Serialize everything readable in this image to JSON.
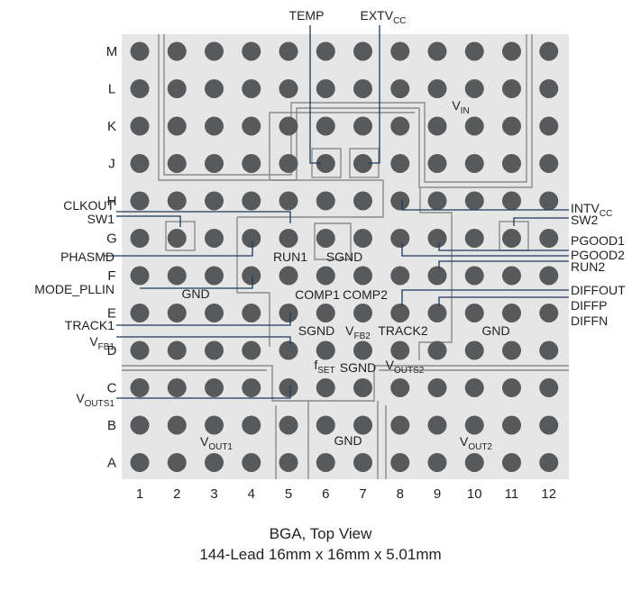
{
  "package": {
    "rows": [
      "M",
      "L",
      "K",
      "J",
      "H",
      "G",
      "F",
      "E",
      "D",
      "C",
      "B",
      "A"
    ],
    "columns": [
      "1",
      "2",
      "3",
      "4",
      "5",
      "6",
      "7",
      "8",
      "9",
      "10",
      "11",
      "12"
    ]
  },
  "top_labels": [
    {
      "text": "TEMP",
      "sub": ""
    },
    {
      "text": "EXTV",
      "sub": "CC"
    }
  ],
  "left_labels": [
    {
      "text": "CLKOUT",
      "sub": ""
    },
    {
      "text": "SW1",
      "sub": ""
    },
    {
      "text": "PHASMD",
      "sub": ""
    },
    {
      "text": "MODE_PLLIN",
      "sub": ""
    },
    {
      "text": "TRACK1",
      "sub": ""
    },
    {
      "text": "V",
      "sub": "FB1"
    },
    {
      "text": "V",
      "sub": "OUTS1"
    }
  ],
  "right_labels": [
    {
      "text": "INTV",
      "sub": "CC"
    },
    {
      "text": "SW2",
      "sub": ""
    },
    {
      "text": "PGOOD1",
      "sub": ""
    },
    {
      "text": "PGOOD2",
      "sub": ""
    },
    {
      "text": "RUN2",
      "sub": ""
    },
    {
      "text": "DIFFOUT",
      "sub": ""
    },
    {
      "text": "DIFFP",
      "sub": ""
    },
    {
      "text": "DIFFN",
      "sub": ""
    }
  ],
  "inner_labels": [
    {
      "text": "V",
      "sub": "IN"
    },
    {
      "text": "RUN1",
      "sub": ""
    },
    {
      "text": "SGND",
      "sub": ""
    },
    {
      "text": "GND",
      "sub": ""
    },
    {
      "text": "COMP1",
      "sub": ""
    },
    {
      "text": "COMP2",
      "sub": ""
    },
    {
      "text": "SGND",
      "sub": ""
    },
    {
      "text": "V",
      "sub": "FB2"
    },
    {
      "text": "TRACK2",
      "sub": ""
    },
    {
      "text": "GND",
      "sub": ""
    },
    {
      "text": "f",
      "sub": "SET"
    },
    {
      "text": "SGND",
      "sub": ""
    },
    {
      "text": "V",
      "sub": "OUTS2"
    },
    {
      "text": "V",
      "sub": "OUT1"
    },
    {
      "text": "GND",
      "sub": ""
    },
    {
      "text": "V",
      "sub": "OUT2"
    }
  ],
  "caption": {
    "line1": "BGA, Top View",
    "line2": "144-Lead 16mm x 16mm x 5.01mm"
  }
}
